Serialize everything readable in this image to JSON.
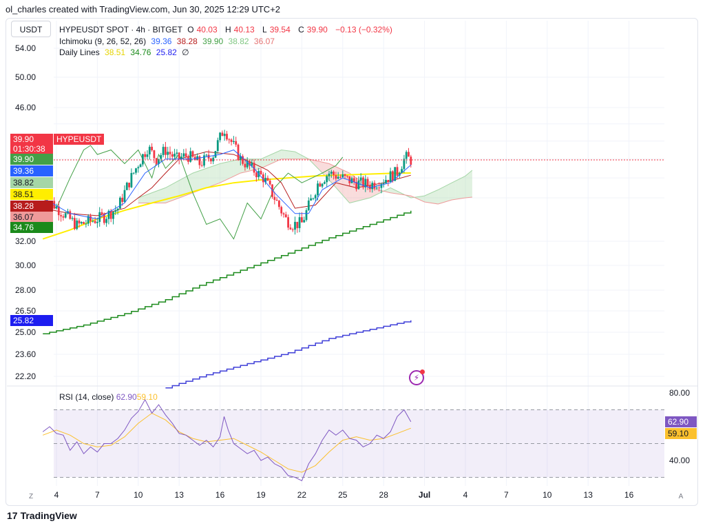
{
  "header": {
    "text": "ol_charles created with TradingView.com, Jun 30, 2025 12:29 UTC+2"
  },
  "currency_button": "USDT",
  "legend": {
    "title": "HYPEUSDT SPOT · 4h · BITGET",
    "o_label": "O",
    "o": "40.03",
    "h_label": "H",
    "h": "40.13",
    "l_label": "L",
    "l": "39.54",
    "c_label": "C",
    "c": "39.90",
    "change": "−0.13 (−0.32%)",
    "ichimoku_label": "Ichimoku (9, 26, 52, 26)",
    "ichimoku_values": [
      "39.36",
      "38.28",
      "39.90",
      "38.82",
      "36.07"
    ],
    "daily_label": "Daily Lines",
    "daily_values": [
      "38.51",
      "34.76",
      "25.82"
    ],
    "daily_extra": "∅"
  },
  "rsi_legend": {
    "label": "RSI (14, close)",
    "rsi": "62.90",
    "ma": "59.10"
  },
  "price_tags": [
    {
      "label": "39.90",
      "sub": "01:30:38",
      "color": "#f23645",
      "name": "HYPEUSDT"
    },
    {
      "label": "39.90",
      "color": "#43a047"
    },
    {
      "label": "39.36",
      "color": "#2962ff"
    },
    {
      "label": "38.82",
      "color": "#a5d6a7",
      "dark": true
    },
    {
      "label": "38.51",
      "color": "#ffee00",
      "dark": true
    },
    {
      "label": "38.28",
      "color": "#b71c1c"
    },
    {
      "label": "36.07",
      "color": "#ef9a9a",
      "dark": true
    },
    {
      "label": "34.76",
      "color": "#1b8a1b"
    },
    {
      "label": "25.82",
      "color": "#1d1df0"
    }
  ],
  "rsi_tags": [
    {
      "label": "62.90",
      "color": "#7e57c2"
    },
    {
      "label": "59.10",
      "color": "#fbc02d",
      "dark": true
    }
  ],
  "buttons": {
    "z": "Z",
    "a": "A"
  },
  "footer": {
    "brand": "TradingView",
    "mark": "17"
  },
  "colors": {
    "up": "#089981",
    "down": "#f23645",
    "conversion": "#2962ff",
    "base": "#b71c1c",
    "lagging": "#43a047",
    "cloud_up": "#a5d6a7",
    "cloud_down": "#ef9a9a",
    "daily1": "#ffee00",
    "daily2": "#1b8a1b",
    "daily3": "#3f3fd8",
    "rsi": "#7e57c2",
    "rsi_ma": "#fbc02d"
  },
  "chart_data": [
    {
      "type": "candlestick",
      "title": "HYPEUSDT SPOT · 4h · BITGET",
      "y_ticks": [
        "54.00",
        "50.00",
        "46.00",
        "32.00",
        "30.00",
        "28.00",
        "26.50",
        "25.00",
        "23.60",
        "22.20"
      ],
      "y_tick_values": [
        54,
        50,
        46,
        32,
        30,
        28,
        26.5,
        25,
        23.6,
        22.2
      ],
      "scale": "log",
      "x_ticks": [
        "4",
        "7",
        "10",
        "13",
        "16",
        "19",
        "22",
        "25",
        "28",
        "Jul",
        "4",
        "7",
        "10",
        "13",
        "16"
      ],
      "x_tick_days": [
        4,
        7,
        10,
        13,
        16,
        19,
        22,
        25,
        28,
        31,
        34,
        37,
        40,
        43,
        46
      ],
      "current_price": 39.9,
      "close_path": [
        [
          3,
          36.3
        ],
        [
          4.5,
          34.5
        ],
        [
          5.5,
          33.4
        ],
        [
          6.5,
          33.8
        ],
        [
          7.5,
          34.2
        ],
        [
          8.5,
          35.0
        ],
        [
          9.3,
          37.5
        ],
        [
          10.0,
          39.5
        ],
        [
          10.7,
          41.3
        ],
        [
          11.3,
          40.0
        ],
        [
          12.0,
          41.0
        ],
        [
          12.8,
          40.0
        ],
        [
          13.6,
          40.4
        ],
        [
          14.5,
          39.5
        ],
        [
          15.5,
          40.5
        ],
        [
          16.3,
          43.5
        ],
        [
          16.8,
          42.0
        ],
        [
          17.5,
          40.0
        ],
        [
          18.3,
          39.0
        ],
        [
          19.2,
          38.0
        ],
        [
          20.0,
          36.0
        ],
        [
          20.8,
          34.0
        ],
        [
          21.3,
          33.5
        ],
        [
          22.0,
          33.6
        ],
        [
          22.6,
          35.5
        ],
        [
          23.2,
          37.5
        ],
        [
          24.0,
          38.5
        ],
        [
          25.0,
          38.0
        ],
        [
          26.0,
          37.5
        ],
        [
          27.0,
          37.3
        ],
        [
          28.0,
          37.8
        ],
        [
          29.0,
          38.6
        ],
        [
          29.6,
          40.2
        ],
        [
          30.0,
          39.9
        ]
      ],
      "ichimoku": {
        "conversion": [
          [
            3,
            36.0
          ],
          [
            5,
            34.5
          ],
          [
            7,
            34.0
          ],
          [
            9,
            35.5
          ],
          [
            10.5,
            38.5
          ],
          [
            12,
            40.0
          ],
          [
            14,
            40.0
          ],
          [
            16,
            40.5
          ],
          [
            17,
            41.0
          ],
          [
            18.5,
            39.0
          ],
          [
            20,
            36.5
          ],
          [
            21.5,
            34.5
          ],
          [
            22.5,
            34.5
          ],
          [
            23.5,
            36.8
          ],
          [
            25,
            38.0
          ],
          [
            27,
            37.0
          ],
          [
            28.5,
            37.5
          ],
          [
            30,
            39.36
          ]
        ],
        "base": [
          [
            3,
            35.0
          ],
          [
            5,
            34.5
          ],
          [
            7,
            34.3
          ],
          [
            9,
            35.0
          ],
          [
            10,
            36.0
          ],
          [
            11,
            37.0
          ],
          [
            12,
            38.5
          ],
          [
            13,
            40.0
          ],
          [
            15,
            40.8
          ],
          [
            17,
            40.5
          ],
          [
            18.5,
            39.5
          ],
          [
            19.5,
            38.8
          ],
          [
            20.5,
            37.5
          ],
          [
            21.5,
            35.0
          ],
          [
            23,
            35.3
          ],
          [
            24.5,
            37.5
          ],
          [
            26,
            37.0
          ],
          [
            28,
            37.5
          ],
          [
            30,
            38.28
          ]
        ],
        "lagging": [
          [
            3,
            36.0
          ],
          [
            4,
            35.0
          ],
          [
            5,
            38.0
          ],
          [
            6,
            41.0
          ],
          [
            6.5,
            41.5
          ],
          [
            7,
            40.5
          ],
          [
            8,
            41.0
          ],
          [
            9,
            39.5
          ],
          [
            10,
            41.0
          ],
          [
            11,
            38.0
          ],
          [
            11.5,
            40.5
          ],
          [
            12,
            39.0
          ],
          [
            13,
            40.5
          ],
          [
            14,
            36.5
          ],
          [
            15,
            33.5
          ],
          [
            16,
            34.0
          ],
          [
            17,
            32.2
          ],
          [
            18,
            35.5
          ],
          [
            19,
            34.0
          ],
          [
            20,
            37.0
          ],
          [
            21,
            38.5
          ],
          [
            22,
            37.5
          ],
          [
            23.5,
            38.5
          ],
          [
            24.5,
            39.3
          ],
          [
            25,
            40.2
          ]
        ],
        "span_a": [
          [
            10,
            36.0
          ],
          [
            12,
            37.0
          ],
          [
            14,
            38.5
          ],
          [
            16,
            39.5
          ],
          [
            17.5,
            40.0
          ],
          [
            19,
            40.0
          ],
          [
            20.5,
            41.0
          ],
          [
            21.5,
            40.8
          ],
          [
            22.5,
            40.0
          ],
          [
            24,
            37.8
          ],
          [
            25.5,
            35.5
          ],
          [
            27,
            36.0
          ],
          [
            28.5,
            37.0
          ],
          [
            30,
            36.0
          ],
          [
            31,
            36.2
          ],
          [
            32,
            36.8
          ],
          [
            33,
            37.5
          ],
          [
            34,
            38.2
          ],
          [
            34.5,
            38.8
          ]
        ],
        "span_b": [
          [
            10,
            35.5
          ],
          [
            12,
            35.5
          ],
          [
            14,
            36.5
          ],
          [
            16,
            37.5
          ],
          [
            17.5,
            38.5
          ],
          [
            19,
            39.0
          ],
          [
            20.5,
            40.0
          ],
          [
            21.5,
            40.0
          ],
          [
            22.5,
            40.0
          ],
          [
            24,
            39.5
          ],
          [
            25.5,
            38.5
          ],
          [
            27,
            37.0
          ],
          [
            28.5,
            36.5
          ],
          [
            30,
            36.2
          ],
          [
            31,
            35.6
          ],
          [
            32,
            35.4
          ],
          [
            33,
            35.8
          ],
          [
            34,
            36.0
          ],
          [
            34.5,
            36.07
          ]
        ]
      },
      "daily_lines": {
        "line1": [
          [
            3,
            32.2
          ],
          [
            5,
            33.0
          ],
          [
            7,
            34.0
          ],
          [
            9,
            34.8
          ],
          [
            11,
            35.5
          ],
          [
            13,
            36.2
          ],
          [
            15,
            37.0
          ],
          [
            17,
            37.5
          ],
          [
            19,
            37.8
          ],
          [
            21,
            38.0
          ],
          [
            23,
            38.2
          ],
          [
            25,
            38.3
          ],
          [
            27,
            38.4
          ],
          [
            29,
            38.5
          ],
          [
            30,
            38.51
          ]
        ],
        "line2": [
          [
            3,
            24.9
          ],
          [
            6,
            25.5
          ],
          [
            9,
            26.3
          ],
          [
            12,
            27.3
          ],
          [
            15,
            28.6
          ],
          [
            18,
            29.8
          ],
          [
            21,
            31.0
          ],
          [
            24,
            32.3
          ],
          [
            27,
            33.5
          ],
          [
            30,
            34.76
          ]
        ],
        "line3": [
          [
            12,
            21.5
          ],
          [
            15,
            22.3
          ],
          [
            18,
            23.0
          ],
          [
            21,
            23.7
          ],
          [
            24,
            24.6
          ],
          [
            27,
            25.2
          ],
          [
            30,
            25.82
          ]
        ]
      }
    },
    {
      "type": "line",
      "title": "RSI (14, close)",
      "y_ticks": [
        "80.00",
        "40.00"
      ],
      "y_tick_values": [
        80,
        40
      ],
      "bands": [
        70,
        50,
        30
      ],
      "rsi": [
        [
          3,
          57
        ],
        [
          3.5,
          60
        ],
        [
          4,
          56
        ],
        [
          4.5,
          55
        ],
        [
          5,
          46
        ],
        [
          5.5,
          51
        ],
        [
          6,
          44
        ],
        [
          6.5,
          48
        ],
        [
          7,
          45
        ],
        [
          7.5,
          50
        ],
        [
          8,
          50
        ],
        [
          8.5,
          53
        ],
        [
          9,
          58
        ],
        [
          9.5,
          65
        ],
        [
          10,
          69
        ],
        [
          10.5,
          76
        ],
        [
          11,
          68
        ],
        [
          11.5,
          73
        ],
        [
          12,
          67
        ],
        [
          12.5,
          62
        ],
        [
          13,
          56
        ],
        [
          13.5,
          55
        ],
        [
          14,
          52
        ],
        [
          14.5,
          49
        ],
        [
          15,
          52
        ],
        [
          15.5,
          48
        ],
        [
          16,
          54
        ],
        [
          16.3,
          66
        ],
        [
          16.6,
          58
        ],
        [
          17,
          50
        ],
        [
          17.5,
          47
        ],
        [
          18,
          44
        ],
        [
          18.5,
          46
        ],
        [
          19,
          40
        ],
        [
          19.5,
          42
        ],
        [
          20,
          38
        ],
        [
          20.5,
          36
        ],
        [
          21,
          31
        ],
        [
          21.5,
          30
        ],
        [
          22,
          28
        ],
        [
          22.5,
          38
        ],
        [
          23,
          44
        ],
        [
          23.5,
          52
        ],
        [
          24,
          58
        ],
        [
          24.5,
          55
        ],
        [
          25,
          58
        ],
        [
          25.5,
          53
        ],
        [
          26,
          52
        ],
        [
          26.5,
          48
        ],
        [
          27,
          50
        ],
        [
          27.5,
          55
        ],
        [
          28,
          53
        ],
        [
          28.5,
          57
        ],
        [
          29,
          66
        ],
        [
          29.5,
          70
        ],
        [
          30,
          62.9
        ]
      ],
      "rsi_ma": [
        [
          3,
          55
        ],
        [
          4,
          58
        ],
        [
          5,
          55
        ],
        [
          6,
          50
        ],
        [
          7,
          48
        ],
        [
          8,
          49
        ],
        [
          9,
          54
        ],
        [
          10,
          62
        ],
        [
          11,
          68
        ],
        [
          12,
          64
        ],
        [
          13,
          57
        ],
        [
          14,
          53
        ],
        [
          15,
          51
        ],
        [
          16,
          52
        ],
        [
          17,
          53
        ],
        [
          18,
          49
        ],
        [
          19,
          45
        ],
        [
          20,
          40
        ],
        [
          21,
          35
        ],
        [
          22,
          33
        ],
        [
          23,
          37
        ],
        [
          24,
          45
        ],
        [
          25,
          52
        ],
        [
          26,
          54
        ],
        [
          27,
          52
        ],
        [
          28,
          53
        ],
        [
          29,
          56
        ],
        [
          30,
          59.1
        ]
      ]
    }
  ]
}
